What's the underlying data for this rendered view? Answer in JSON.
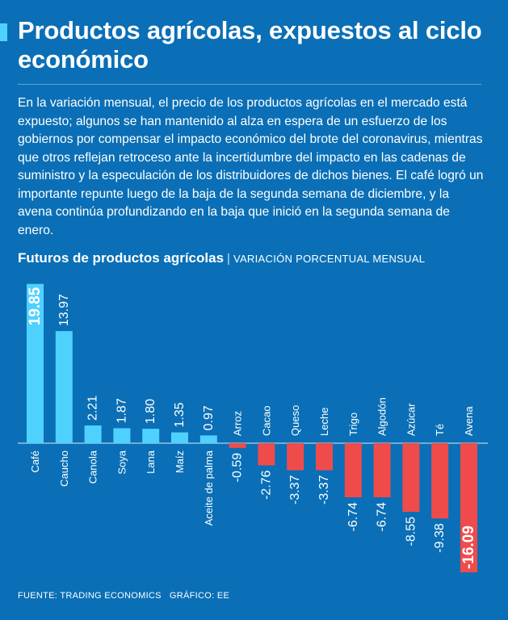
{
  "title": "Productos agrícolas, expuestos al ciclo económico",
  "intro": "En la variación mensual, el precio de los productos agrícolas en el mercado está expuesto; algunos se han mantenido al alza en espera de un esfuerzo de los gobiernos por compensar el impacto económico del brote del coronavirus, mientras que otros reflejan retroceso ante la incertidumbre del impacto en las cadenas de suministro y la especulación de los distribuidores de dichos bienes. El café logró un importante repunte luego de la baja de la segunda semana de diciembre, y la avena continúa profundizando en la baja que inició en la segunda semana de enero.",
  "chart_heading": {
    "title": "Futuros de productos agrícolas",
    "separator": "|",
    "subtitle": "VARIACIÓN PORCENTUAL MENSUAL"
  },
  "footer": {
    "source": "FUENTE: TRADING ECONOMICS",
    "graphic": "GRÁFICO: EE"
  },
  "colors": {
    "background": "#0a6fb6",
    "positive": "#4fd1ff",
    "negative": "#f04b4b",
    "text": "#ffffff"
  },
  "chart_data": {
    "type": "bar",
    "title": "Futuros de productos agrícolas",
    "subtitle": "VARIACIÓN PORCENTUAL MENSUAL",
    "xlabel": "",
    "ylabel": "",
    "ylim": [
      -16.09,
      19.85
    ],
    "grid": false,
    "categories": [
      "Café",
      "Caucho",
      "Canola",
      "Soya",
      "Lana",
      "Maíz",
      "Aceite de palma",
      "Arroz",
      "Cacao",
      "Queso",
      "Leche",
      "Trigo",
      "Algodón",
      "Azúcar",
      "Té",
      "Avena"
    ],
    "values": [
      19.85,
      13.97,
      2.21,
      1.87,
      1.8,
      1.35,
      0.97,
      -0.59,
      -2.76,
      -3.37,
      -3.37,
      -6.74,
      -6.74,
      -8.55,
      -9.38,
      -16.09
    ],
    "value_labels": [
      "19.85",
      "13.97",
      "2.21",
      "1.87",
      "1.80",
      "1.35",
      "0.97",
      "-0.59",
      "-2.76",
      "-3.37",
      "-3.37",
      "-6.74",
      "-6.74",
      "-8.55",
      "-9.38",
      "-16.09"
    ]
  }
}
